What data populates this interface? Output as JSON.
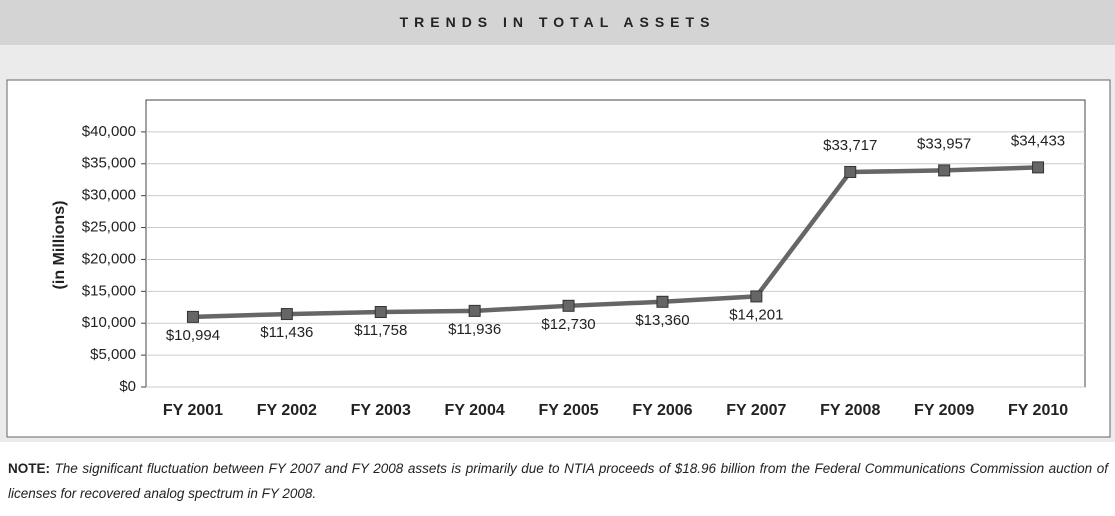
{
  "chart_data": {
    "type": "line",
    "title": "TRENDS IN TOTAL ASSETS",
    "y_label": "(in Millions)",
    "categories": [
      "FY 2001",
      "FY 2002",
      "FY 2003",
      "FY 2004",
      "FY 2005",
      "FY 2006",
      "FY 2007",
      "FY 2008",
      "FY 2009",
      "FY 2010"
    ],
    "values": [
      10994,
      11436,
      11758,
      11936,
      12730,
      13360,
      14201,
      33717,
      33957,
      34433
    ],
    "value_labels": [
      "$10,994",
      "$11,436",
      "$11,758",
      "$11,936",
      "$12,730",
      "$13,360",
      "$14,201",
      "$33,717",
      "$33,957",
      "$34,433"
    ],
    "color": "#666666",
    "ylim": [
      0,
      45000
    ],
    "yticks": [
      {
        "value": 0,
        "label": "$0"
      },
      {
        "value": 5000,
        "label": "$5,000"
      },
      {
        "value": 10000,
        "label": "$10,000"
      },
      {
        "value": 15000,
        "label": "$15,000"
      },
      {
        "value": 20000,
        "label": "$20,000"
      },
      {
        "value": 25000,
        "label": "$25,000"
      },
      {
        "value": 30000,
        "label": "$30,000"
      },
      {
        "value": 35000,
        "label": "$35,000"
      },
      {
        "value": 40000,
        "label": "$40,000"
      }
    ],
    "grid": true
  },
  "note": {
    "label": "NOTE:",
    "text": "The significant fluctuation between FY 2007 and FY 2008 assets is primarily due to NTIA proceeds of $18.96 billion from the Federal Communications Commission auction of licenses for recovered analog spectrum in FY 2008."
  }
}
